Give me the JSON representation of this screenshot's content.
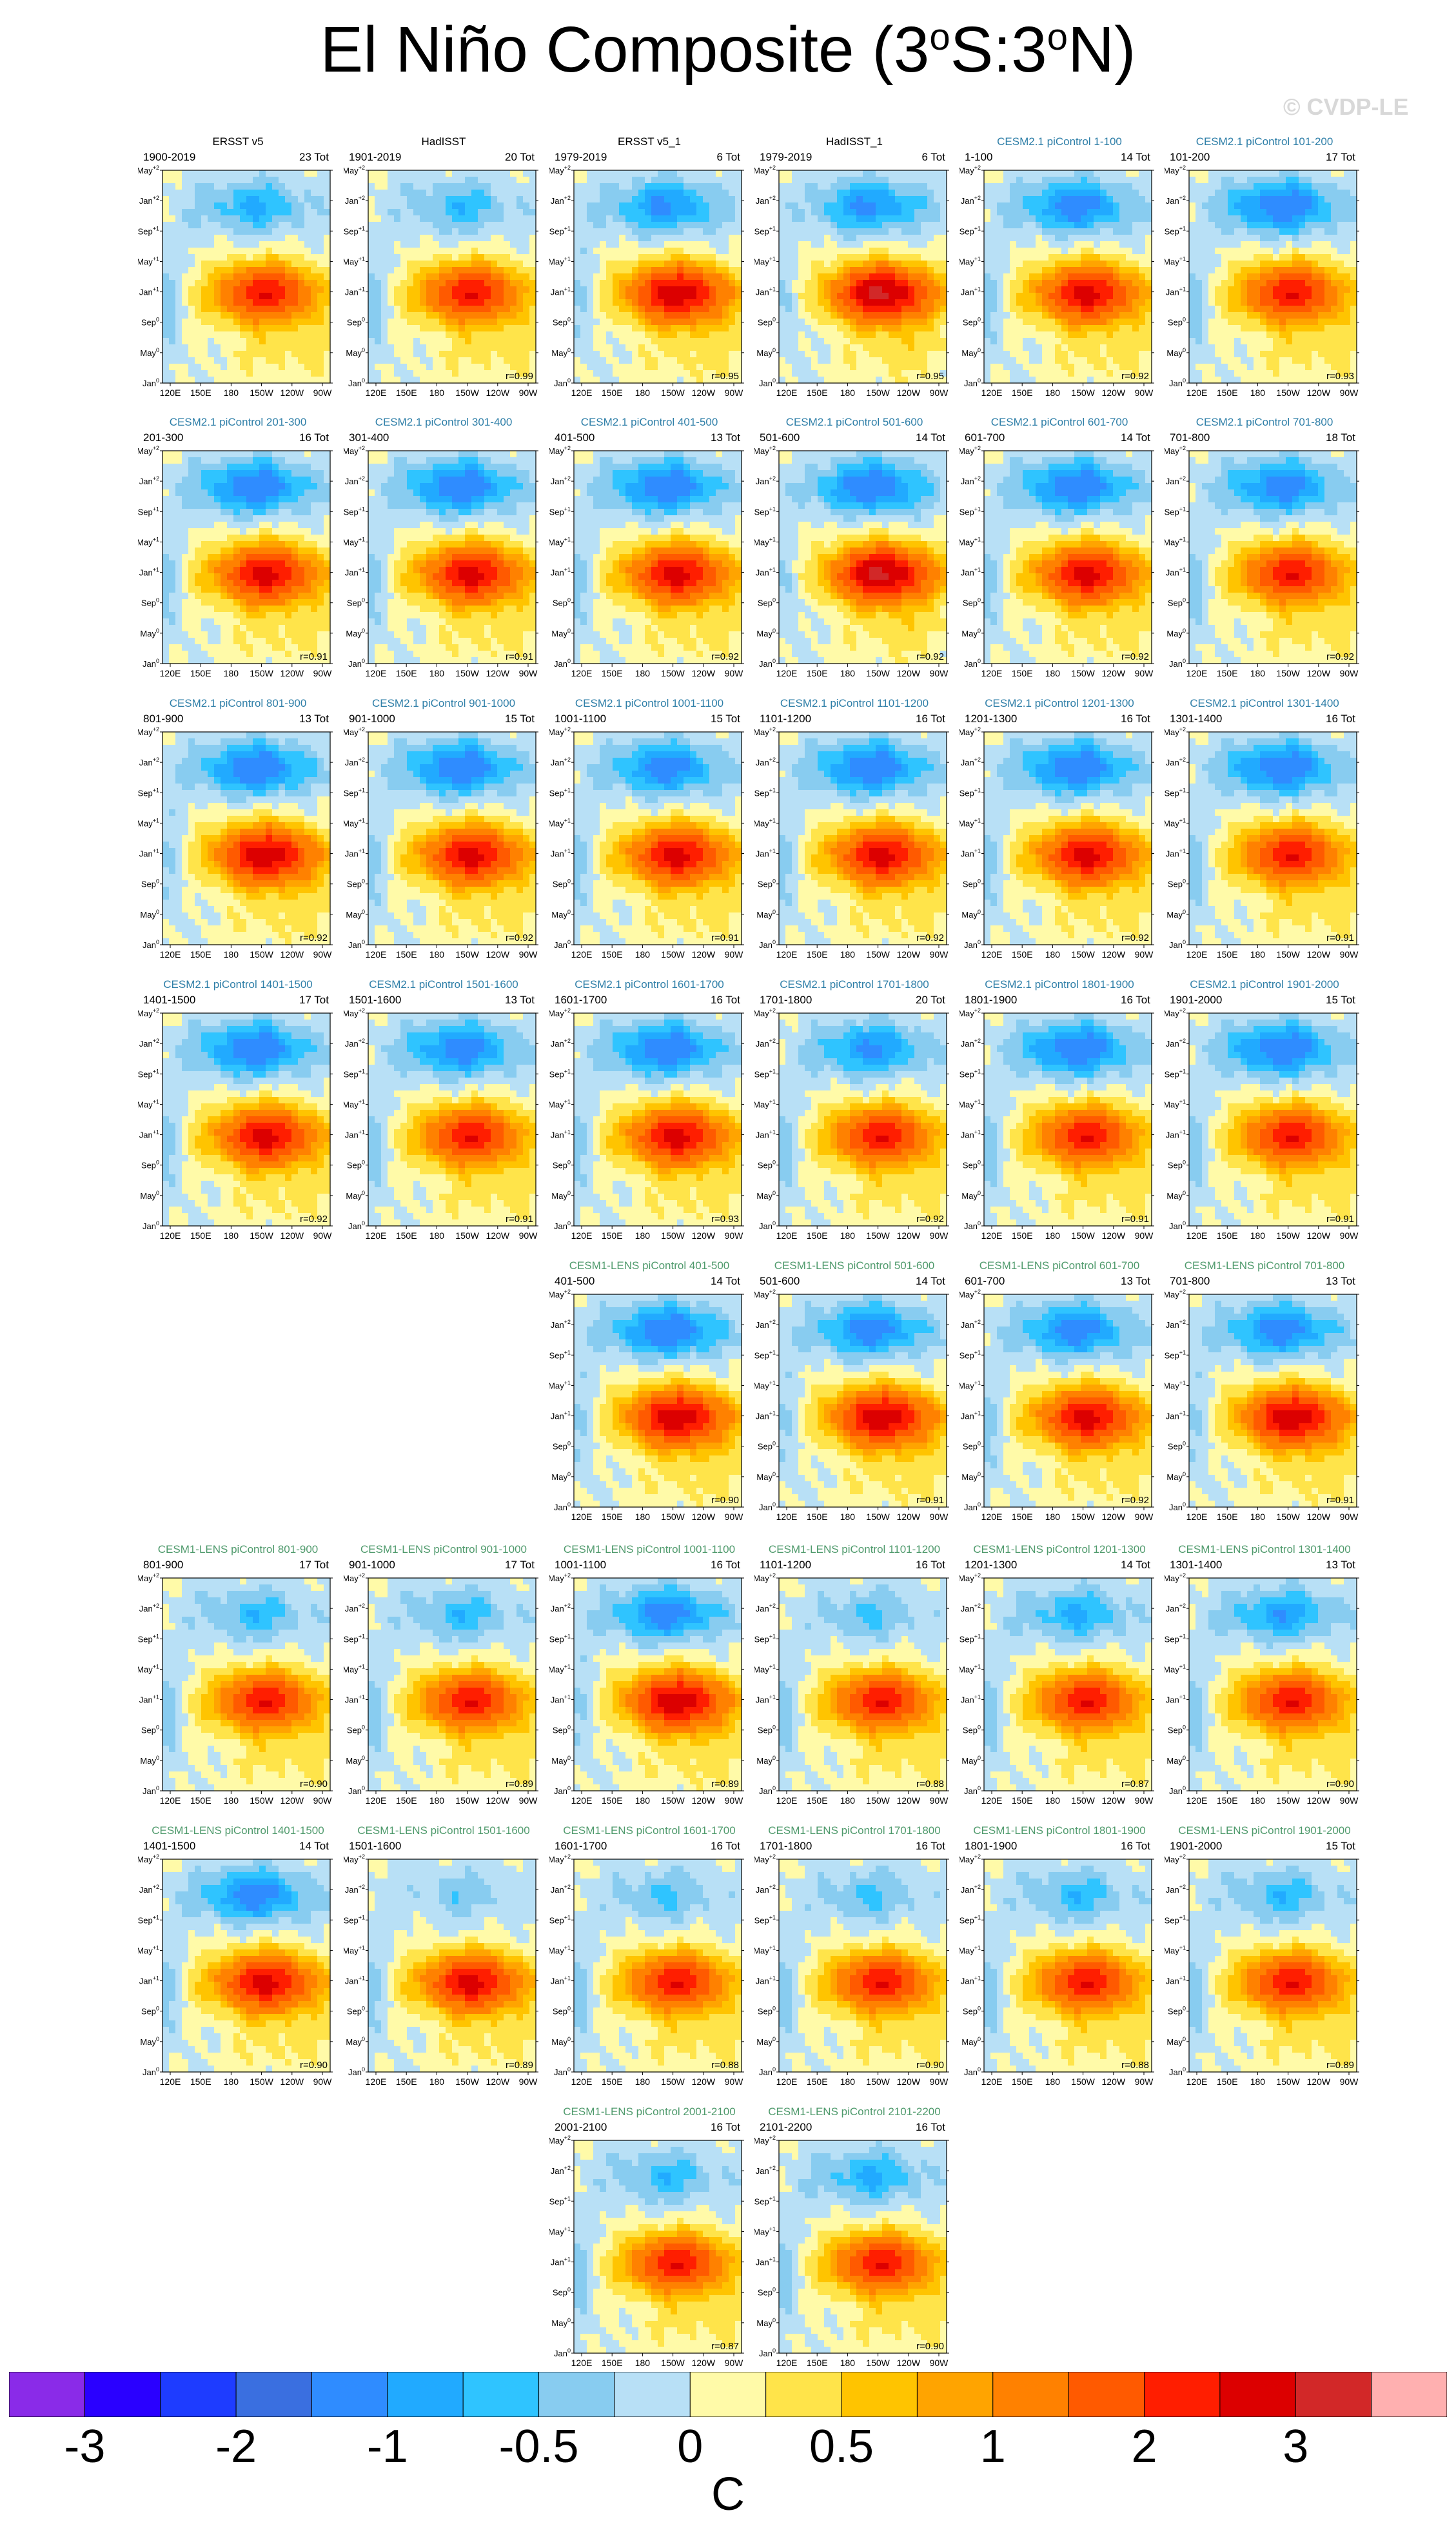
{
  "title": {
    "main": "El Niño Composite (3",
    "sup1": "o",
    "mid": "S:3",
    "sup2": "o",
    "end": "N)"
  },
  "watermark": "© CVDP-LE",
  "colors": {
    "cesm2_title": "#2f7fa8",
    "lens_title": "#4f9a6c",
    "obs_title": "#000000"
  },
  "chart_data": {
    "type": "heatmap",
    "title": "El Niño Composite (3oS:3oN)",
    "x_ticks": [
      "120E",
      "150E",
      "180",
      "150W",
      "120W",
      "90W"
    ],
    "y_ticks": [
      "May+2",
      "Jan+2",
      "Sep+1",
      "May+1",
      "Jan+1",
      "Sep0",
      "May0",
      "Jan0"
    ],
    "colorbar": {
      "unit": "C",
      "labels": [
        "-3",
        "-2",
        "-1",
        "-0.5",
        "0",
        "0.5",
        "1",
        "2",
        "3"
      ],
      "colors": [
        "#8a2be8",
        "#2a00ff",
        "#1e3cff",
        "#3a6fe0",
        "#2f8cff",
        "#21aaff",
        "#2fc4ff",
        "#88ccf0",
        "#b8e0f6",
        "#fffaa8",
        "#ffe44a",
        "#ffc400",
        "#ffa400",
        "#ff8100",
        "#ff5a00",
        "#ff1e00",
        "#dc0000",
        "#d22828",
        "#ffb0b0"
      ]
    },
    "panels": [
      {
        "title": "ERSST v5",
        "period": "1900-2019",
        "tot": "23 Tot",
        "r": "",
        "group": "obs",
        "amp": 1.0,
        "cold": 0.6
      },
      {
        "title": "HadISST",
        "period": "1901-2019",
        "tot": "20 Tot",
        "r": "r=0.99",
        "group": "obs",
        "amp": 1.0,
        "cold": 0.5
      },
      {
        "title": "ERSST v5_1",
        "period": "1979-2019",
        "tot": "6 Tot",
        "r": "r=0.95",
        "group": "obs",
        "amp": 1.2,
        "cold": 0.8
      },
      {
        "title": "HadISST_1",
        "period": "1979-2019",
        "tot": "6 Tot",
        "r": "r=0.95",
        "group": "obs",
        "amp": 1.3,
        "cold": 0.8
      },
      {
        "title": "CESM2.1 piControl 1-100",
        "period": "1-100",
        "tot": "14 Tot",
        "r": "r=0.92",
        "group": "cesm2",
        "amp": 1.1,
        "cold": 0.9
      },
      {
        "title": "CESM2.1 piControl 101-200",
        "period": "101-200",
        "tot": "17 Tot",
        "r": "r=0.93",
        "group": "cesm2",
        "amp": 1.0,
        "cold": 1.0
      },
      {
        "title": "CESM2.1 piControl 201-300",
        "period": "201-300",
        "tot": "16 Tot",
        "r": "r=0.91",
        "group": "cesm2",
        "amp": 1.1,
        "cold": 1.0
      },
      {
        "title": "CESM2.1 piControl 301-400",
        "period": "301-400",
        "tot": "",
        "r": "r=0.91",
        "group": "cesm2",
        "amp": 1.1,
        "cold": 1.0
      },
      {
        "title": "CESM2.1 piControl 401-500",
        "period": "401-500",
        "tot": "13 Tot",
        "r": "r=0.92",
        "group": "cesm2",
        "amp": 1.1,
        "cold": 1.0
      },
      {
        "title": "CESM2.1 piControl 501-600",
        "period": "501-600",
        "tot": "14 Tot",
        "r": "r=0.92",
        "group": "cesm2",
        "amp": 1.3,
        "cold": 1.0
      },
      {
        "title": "CESM2.1 piControl 601-700",
        "period": "601-700",
        "tot": "14 Tot",
        "r": "r=0.92",
        "group": "cesm2",
        "amp": 1.1,
        "cold": 1.0
      },
      {
        "title": "CESM2.1 piControl 701-800",
        "period": "701-800",
        "tot": "18 Tot",
        "r": "r=0.92",
        "group": "cesm2",
        "amp": 1.0,
        "cold": 0.9
      },
      {
        "title": "CESM2.1 piControl 801-900",
        "period": "801-900",
        "tot": "13 Tot",
        "r": "r=0.92",
        "group": "cesm2",
        "amp": 1.2,
        "cold": 1.0
      },
      {
        "title": "CESM2.1 piControl 901-1000",
        "period": "901-1000",
        "tot": "15 Tot",
        "r": "r=0.92",
        "group": "cesm2",
        "amp": 1.1,
        "cold": 1.0
      },
      {
        "title": "CESM2.1 piControl 1001-1100",
        "period": "1001-1100",
        "tot": "15 Tot",
        "r": "r=0.91",
        "group": "cesm2",
        "amp": 1.1,
        "cold": 0.9
      },
      {
        "title": "CESM2.1 piControl 1101-1200",
        "period": "1101-1200",
        "tot": "16 Tot",
        "r": "r=0.92",
        "group": "cesm2",
        "amp": 1.1,
        "cold": 1.0
      },
      {
        "title": "CESM2.1 piControl 1201-1300",
        "period": "1201-1300",
        "tot": "16 Tot",
        "r": "r=0.92",
        "group": "cesm2",
        "amp": 1.1,
        "cold": 1.0
      },
      {
        "title": "CESM2.1 piControl 1301-1400",
        "period": "1301-1400",
        "tot": "16 Tot",
        "r": "r=0.91",
        "group": "cesm2",
        "amp": 1.0,
        "cold": 1.0
      },
      {
        "title": "CESM2.1 piControl 1401-1500",
        "period": "1401-1500",
        "tot": "17 Tot",
        "r": "r=0.92",
        "group": "cesm2",
        "amp": 1.1,
        "cold": 1.0
      },
      {
        "title": "CESM2.1 piControl 1501-1600",
        "period": "1501-1600",
        "tot": "13 Tot",
        "r": "r=0.91",
        "group": "cesm2",
        "amp": 1.0,
        "cold": 0.9
      },
      {
        "title": "CESM2.1 piControl 1601-1700",
        "period": "1601-1700",
        "tot": "16 Tot",
        "r": "r=0.93",
        "group": "cesm2",
        "amp": 1.1,
        "cold": 1.0
      },
      {
        "title": "CESM2.1 piControl 1701-1800",
        "period": "1701-1800",
        "tot": "20 Tot",
        "r": "r=0.92",
        "group": "cesm2",
        "amp": 1.0,
        "cold": 0.8
      },
      {
        "title": "CESM2.1 piControl 1801-1900",
        "period": "1801-1900",
        "tot": "16 Tot",
        "r": "r=0.91",
        "group": "cesm2",
        "amp": 1.0,
        "cold": 1.0
      },
      {
        "title": "CESM2.1 piControl 1901-2000",
        "period": "1901-2000",
        "tot": "15 Tot",
        "r": "r=0.91",
        "group": "cesm2",
        "amp": 1.0,
        "cold": 1.0
      },
      {
        "title": "CESM1-LENS piControl 401-500",
        "period": "401-500",
        "tot": "14 Tot",
        "r": "r=0.90",
        "group": "lens",
        "amp": 1.2,
        "cold": 1.0
      },
      {
        "title": "CESM1-LENS piControl 501-600",
        "period": "501-600",
        "tot": "14 Tot",
        "r": "r=0.91",
        "group": "lens",
        "amp": 1.2,
        "cold": 0.9
      },
      {
        "title": "CESM1-LENS piControl 601-700",
        "period": "601-700",
        "tot": "13 Tot",
        "r": "r=0.92",
        "group": "lens",
        "amp": 1.1,
        "cold": 0.9
      },
      {
        "title": "CESM1-LENS piControl 701-800",
        "period": "701-800",
        "tot": "13 Tot",
        "r": "r=0.91",
        "group": "lens",
        "amp": 1.2,
        "cold": 0.9
      },
      {
        "title": "CESM1-LENS piControl 801-900",
        "period": "801-900",
        "tot": "17 Tot",
        "r": "r=0.90",
        "group": "lens",
        "amp": 1.0,
        "cold": 0.5
      },
      {
        "title": "CESM1-LENS piControl 901-1000",
        "period": "901-1000",
        "tot": "17 Tot",
        "r": "r=0.89",
        "group": "lens",
        "amp": 1.0,
        "cold": 0.5
      },
      {
        "title": "CESM1-LENS piControl 1001-1100",
        "period": "1001-1100",
        "tot": "16 Tot",
        "r": "r=0.89",
        "group": "lens",
        "amp": 1.2,
        "cold": 0.9
      },
      {
        "title": "CESM1-LENS piControl 1101-1200",
        "period": "1101-1200",
        "tot": "16 Tot",
        "r": "r=0.88",
        "group": "lens",
        "amp": 1.0,
        "cold": 0.4
      },
      {
        "title": "CESM1-LENS piControl 1201-1300",
        "period": "1201-1300",
        "tot": "14 Tot",
        "r": "r=0.87",
        "group": "lens",
        "amp": 1.0,
        "cold": 0.6
      },
      {
        "title": "CESM1-LENS piControl 1301-1400",
        "period": "1301-1400",
        "tot": "13 Tot",
        "r": "r=0.90",
        "group": "lens",
        "amp": 1.0,
        "cold": 0.7
      },
      {
        "title": "CESM1-LENS piControl 1401-1500",
        "period": "1401-1500",
        "tot": "14 Tot",
        "r": "r=0.90",
        "group": "lens",
        "amp": 1.1,
        "cold": 0.9
      },
      {
        "title": "CESM1-LENS piControl 1501-1600",
        "period": "1501-1600",
        "tot": "",
        "r": "r=0.89",
        "group": "lens",
        "amp": 1.1,
        "cold": 0.3
      },
      {
        "title": "CESM1-LENS piControl 1601-1700",
        "period": "1601-1700",
        "tot": "16 Tot",
        "r": "r=0.88",
        "group": "lens",
        "amp": 1.0,
        "cold": 0.4
      },
      {
        "title": "CESM1-LENS piControl 1701-1800",
        "period": "1701-1800",
        "tot": "16 Tot",
        "r": "r=0.90",
        "group": "lens",
        "amp": 1.0,
        "cold": 0.4
      },
      {
        "title": "CESM1-LENS piControl 1801-1900",
        "period": "1801-1900",
        "tot": "16 Tot",
        "r": "r=0.88",
        "group": "lens",
        "amp": 1.0,
        "cold": 0.5
      },
      {
        "title": "CESM1-LENS piControl 1901-2000",
        "period": "1901-2000",
        "tot": "15 Tot",
        "r": "r=0.89",
        "group": "lens",
        "amp": 1.0,
        "cold": 0.5
      },
      {
        "title": "CESM1-LENS piControl 2001-2100",
        "period": "2001-2100",
        "tot": "16 Tot",
        "r": "r=0.87",
        "group": "lens",
        "amp": 1.0,
        "cold": 0.5
      },
      {
        "title": "CESM1-LENS piControl 2101-2200",
        "period": "2101-2200",
        "tot": "16 Tot",
        "r": "r=0.90",
        "group": "lens",
        "amp": 1.0,
        "cold": 0.6
      }
    ]
  }
}
